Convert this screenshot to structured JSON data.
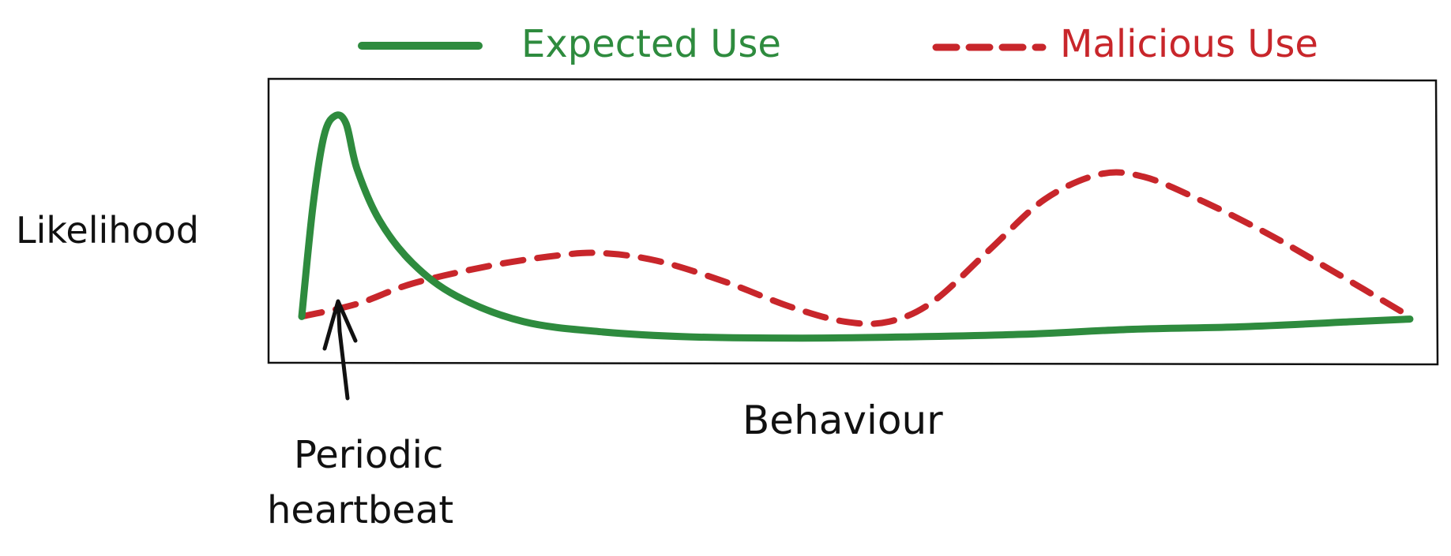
{
  "chart_data": {
    "type": "line",
    "title": "",
    "xlabel": "Behaviour",
    "ylabel": "Likelihood",
    "legend_position": "top",
    "grid": false,
    "frame": true,
    "x_ticks": false,
    "y_ticks": false,
    "series": [
      {
        "name": "Expected Use",
        "color": "#2e8b3e",
        "style": "solid",
        "points": [
          [
            0.0,
            0.12
          ],
          [
            0.01,
            0.55
          ],
          [
            0.02,
            0.83
          ],
          [
            0.03,
            0.91
          ],
          [
            0.04,
            0.88
          ],
          [
            0.05,
            0.7
          ],
          [
            0.07,
            0.5
          ],
          [
            0.1,
            0.33
          ],
          [
            0.14,
            0.2
          ],
          [
            0.2,
            0.1
          ],
          [
            0.27,
            0.06
          ],
          [
            0.35,
            0.04
          ],
          [
            0.45,
            0.035
          ],
          [
            0.55,
            0.04
          ],
          [
            0.65,
            0.05
          ],
          [
            0.75,
            0.07
          ],
          [
            0.85,
            0.08
          ],
          [
            0.95,
            0.1
          ],
          [
            1.0,
            0.11
          ]
        ]
      },
      {
        "name": "Malicious Use",
        "color": "#c8262b",
        "style": "dashed",
        "points": [
          [
            0.0,
            0.12
          ],
          [
            0.05,
            0.17
          ],
          [
            0.1,
            0.25
          ],
          [
            0.17,
            0.32
          ],
          [
            0.23,
            0.36
          ],
          [
            0.27,
            0.37
          ],
          [
            0.32,
            0.34
          ],
          [
            0.38,
            0.26
          ],
          [
            0.44,
            0.16
          ],
          [
            0.49,
            0.1
          ],
          [
            0.53,
            0.1
          ],
          [
            0.57,
            0.18
          ],
          [
            0.62,
            0.38
          ],
          [
            0.67,
            0.58
          ],
          [
            0.72,
            0.68
          ],
          [
            0.76,
            0.67
          ],
          [
            0.81,
            0.58
          ],
          [
            0.87,
            0.45
          ],
          [
            0.93,
            0.3
          ],
          [
            1.0,
            0.12
          ]
        ]
      }
    ],
    "annotations": [
      {
        "text_line1": "Periodic",
        "text_line2": "heartbeat",
        "points_to_x": 0.03
      }
    ],
    "xlim": [
      0,
      1
    ],
    "ylim": [
      0,
      1
    ]
  },
  "colors": {
    "expected": "#2e8b3e",
    "malicious": "#c8262b",
    "ink": "#111111"
  }
}
